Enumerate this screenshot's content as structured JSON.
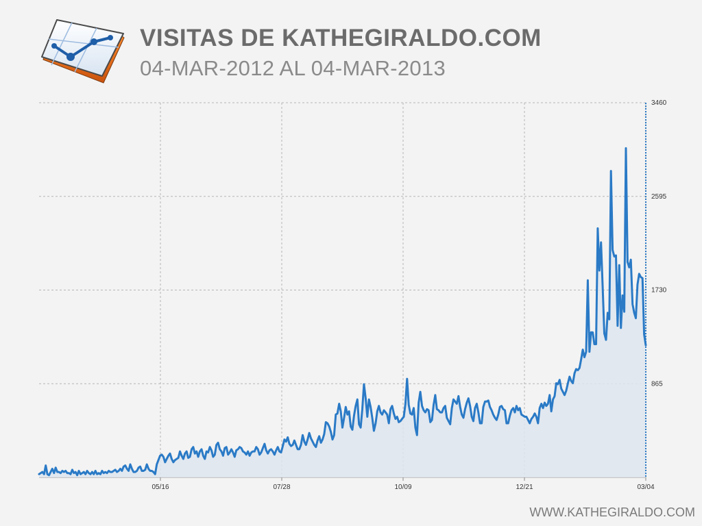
{
  "header": {
    "title": "VISITAS DE KATHEGIRALDO.COM",
    "subtitle": "04-MAR-2012 AL 04-MAR-2013"
  },
  "footer": {
    "url": "WWW.KATHEGIRALDO.COM"
  },
  "icons": {
    "logo": "line-chart-app-icon"
  },
  "colors": {
    "line": "#2a7ac6",
    "fill": "#dde5ee",
    "grid": "#b5b5b5",
    "background": "#f3f3f3"
  },
  "chart_data": {
    "type": "area",
    "title": "VISITAS DE KATHEGIRALDO.COM",
    "subtitle": "04-MAR-2012 AL 04-MAR-2013",
    "xlabel": "",
    "ylabel": "",
    "x_range": [
      "2012-03-04",
      "2013-03-04"
    ],
    "ylim": [
      0,
      3460
    ],
    "y_ticks": [
      865,
      1730,
      2595,
      3460
    ],
    "y_tick_labels": [
      "865",
      "1730",
      "2595",
      "3460"
    ],
    "x_ticks": [
      "2012-05-16",
      "2012-07-28",
      "2012-10-09",
      "2012-12-21",
      "2013-03-04"
    ],
    "x_tick_labels": [
      "05/16",
      "07/28",
      "10/09",
      "12/21",
      "03/04"
    ],
    "grid": true,
    "legend": "none",
    "series": [
      {
        "values": [
          30,
          40,
          50,
          30,
          110,
          30,
          20,
          50,
          80,
          40,
          90,
          50,
          50,
          40,
          60,
          50,
          60,
          40,
          40,
          30,
          70,
          40,
          50,
          20,
          60,
          30,
          40,
          50,
          30,
          60,
          40,
          30,
          50,
          30,
          60,
          30,
          40,
          30,
          60,
          40,
          50,
          40,
          60,
          50,
          50,
          60,
          70,
          50,
          60,
          80,
          60,
          100,
          110,
          80,
          60,
          120,
          80,
          50,
          50,
          60,
          90,
          100,
          60,
          60,
          70,
          120,
          80,
          60,
          60,
          50,
          30,
          120,
          160,
          200,
          210,
          190,
          140,
          170,
          200,
          220,
          170,
          140,
          160,
          170,
          180,
          240,
          200,
          170,
          220,
          240,
          180,
          190,
          260,
          280,
          220,
          240,
          190,
          240,
          260,
          200,
          170,
          240,
          230,
          280,
          250,
          190,
          210,
          300,
          320,
          260,
          240,
          200,
          270,
          280,
          210,
          230,
          260,
          230,
          190,
          250,
          260,
          280,
          270,
          240,
          230,
          210,
          240,
          200,
          230,
          240,
          240,
          280,
          260,
          210,
          230,
          270,
          310,
          250,
          220,
          250,
          260,
          240,
          210,
          250,
          280,
          240,
          230,
          290,
          350,
          330,
          370,
          310,
          290,
          300,
          340,
          300,
          260,
          260,
          300,
          390,
          330,
          300,
          350,
          410,
          360,
          330,
          300,
          280,
          340,
          380,
          320,
          350,
          400,
          510,
          500,
          470,
          420,
          350,
          390,
          580,
          590,
          680,
          610,
          460,
          550,
          650,
          580,
          610,
          470,
          440,
          570,
          660,
          720,
          490,
          460,
          630,
          860,
          730,
          560,
          720,
          650,
          550,
          430,
          500,
          610,
          660,
          600,
          580,
          620,
          600,
          580,
          500,
          630,
          660,
          590,
          540,
          560,
          510,
          520,
          540,
          560,
          680,
          910,
          670,
          590,
          580,
          640,
          460,
          390,
          690,
          790,
          660,
          620,
          600,
          630,
          620,
          510,
          530,
          670,
          760,
          630,
          620,
          600,
          600,
          640,
          660,
          550,
          520,
          490,
          640,
          720,
          700,
          680,
          750,
          650,
          580,
          550,
          630,
          690,
          730,
          660,
          560,
          520,
          640,
          680,
          600,
          500,
          500,
          650,
          700,
          700,
          710,
          650,
          620,
          580,
          550,
          530,
          580,
          650,
          660,
          630,
          620,
          500,
          500,
          570,
          620,
          640,
          600,
          660,
          620,
          640,
          580,
          570,
          560,
          560,
          530,
          500,
          540,
          560,
          590,
          560,
          500,
          640,
          680,
          640,
          690,
          660,
          680,
          760,
          610,
          720,
          750,
          870,
          860,
          900,
          820,
          790,
          760,
          800,
          870,
          930,
          890,
          870,
          960,
          1000,
          990,
          1010,
          1090,
          1180,
          1110,
          1160,
          1820,
          1160,
          1340,
          1340,
          1230,
          1230,
          2300,
          1910,
          2170,
          1760,
          1330,
          1270,
          1520,
          1460,
          2830,
          2100,
          2040,
          2050,
          1400,
          1960,
          1380,
          1680,
          1530,
          3040,
          1990,
          1940,
          2010,
          1600,
          1520,
          1470,
          1780,
          1880,
          1850,
          1840,
          1320,
          1220
        ]
      }
    ]
  }
}
